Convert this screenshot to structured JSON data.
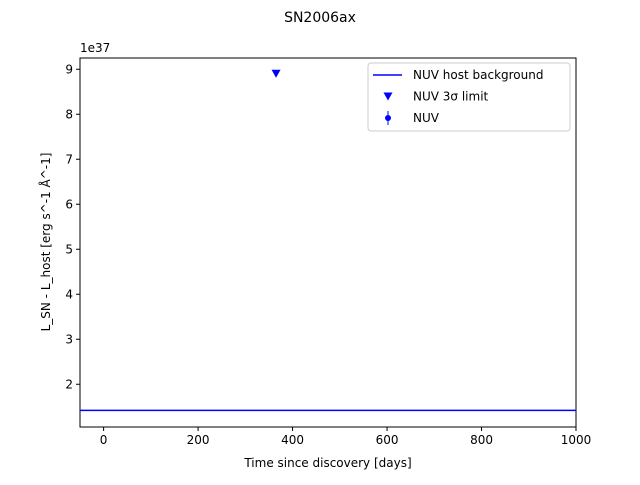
{
  "chart_data": {
    "type": "scatter",
    "title": "SN2006ax",
    "xlabel": "Time since discovery [days]",
    "ylabel": "L_SN - L_host [erg s^-1 Å^-1]",
    "y_multiplier_label": "1e37",
    "xlim": [
      -50,
      1000
    ],
    "ylim": [
      1.05,
      9.25
    ],
    "xticks": [
      0,
      200,
      400,
      600,
      800,
      1000
    ],
    "yticks": [
      2,
      3,
      4,
      5,
      6,
      7,
      8,
      9
    ],
    "grid": false,
    "legend_placement": "top-right",
    "series": [
      {
        "name": "NUV host background",
        "kind": "hline",
        "y": 1.42,
        "color": "#0000ff"
      },
      {
        "name": "NUV 3σ limit",
        "kind": "upper-limit",
        "x": [
          365
        ],
        "y": [
          8.9
        ],
        "color": "#0000ff"
      },
      {
        "name": "NUV",
        "kind": "errorbar",
        "x": [],
        "y": [],
        "color": "#0000ff"
      }
    ]
  }
}
